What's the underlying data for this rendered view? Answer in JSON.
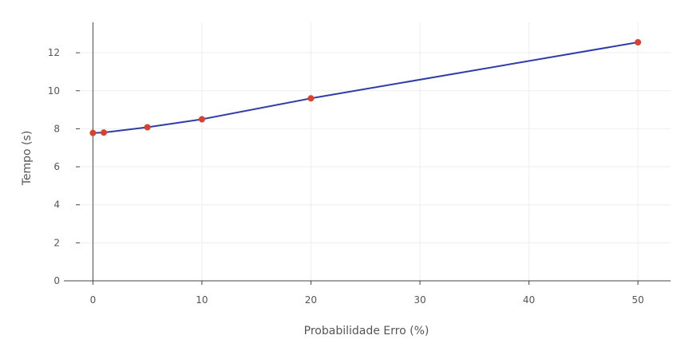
{
  "chart_data": {
    "type": "line",
    "title": "",
    "xlabel": "Probabilidade Erro (%)",
    "ylabel": "Tempo (s)",
    "xlim": [
      -1.2,
      53
    ],
    "ylim": [
      0,
      13.6
    ],
    "xticks": [
      0,
      10,
      20,
      30,
      40,
      50
    ],
    "yticks": [
      0,
      2,
      4,
      6,
      8,
      10,
      12
    ],
    "grid": true,
    "legend": "none",
    "colors": {
      "line": "#2e3da8",
      "marker": "#d9412b",
      "grid": "#eeeeee",
      "axis": "#444444"
    },
    "series": [
      {
        "x": [
          0,
          1,
          5,
          10,
          20,
          50
        ],
        "y": [
          7.78,
          7.8,
          8.08,
          8.5,
          9.6,
          12.55
        ]
      }
    ]
  }
}
